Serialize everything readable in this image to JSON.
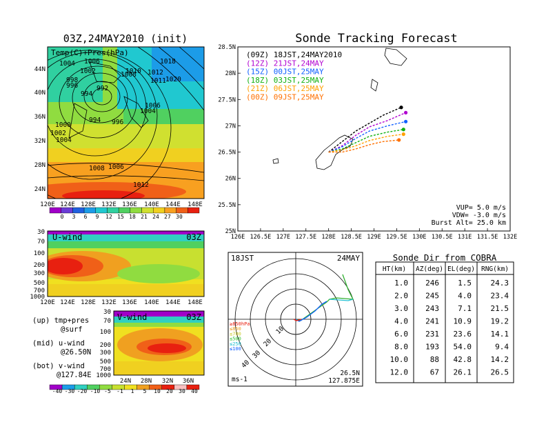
{
  "colors": {
    "temp_scale": [
      "#a000c8",
      "#6a3cd6",
      "#2060e0",
      "#1c9ce8",
      "#20c8d0",
      "#30d0a0",
      "#50d060",
      "#90dc40",
      "#d0e030",
      "#f0d020",
      "#f8a020",
      "#f06018",
      "#e82010"
    ],
    "uwind_scale": [
      "#a000c8",
      "#1c9ce8",
      "#30d0c0",
      "#50d060",
      "#90dc40",
      "#c8e030",
      "#f0e020",
      "#f0a020",
      "#f06018",
      "#e82010"
    ],
    "run_09z": "#000000",
    "run_12z": "#b000d0",
    "run_15z": "#1060ff",
    "run_18z": "#10b010",
    "run_21z": "#ffa000",
    "run_00z": "#ff7000"
  },
  "map_panel": {
    "title": "03Z,24MAY2010 (init)",
    "legend_label": "Temp(C)+Pres(hPa)",
    "lat_labels": [
      "44N",
      "40N",
      "36N",
      "32N",
      "28N",
      "24N"
    ],
    "lon_labels": [
      "120E",
      "124E",
      "128E",
      "132E",
      "136E",
      "140E",
      "144E",
      "148E"
    ],
    "colorbar_labels": [
      "0",
      "3",
      "6",
      "9",
      "12",
      "15",
      "18",
      "21",
      "24",
      "27",
      "30"
    ],
    "isobar_labels": [
      "1006",
      "1004",
      "1002",
      "998",
      "996",
      "994",
      "992",
      "1000",
      "1002",
      "1004",
      "994",
      "996",
      "1008",
      "1006",
      "1012",
      "1010",
      "1008",
      "1012",
      "1011",
      "1020",
      "1018",
      "1006",
      "1004"
    ]
  },
  "uwind_panel": {
    "title": "U-wind",
    "time": "03Z",
    "y_labels": [
      "30",
      "70",
      "100",
      "200",
      "300",
      "500",
      "700",
      "1000"
    ],
    "x_labels": [
      "120E",
      "124E",
      "128E",
      "132E",
      "136E",
      "140E",
      "144E",
      "148E"
    ]
  },
  "vwind_panel": {
    "title": "V-wind",
    "time": "03Z",
    "y_labels": [
      "30",
      "70",
      "100",
      "200",
      "300",
      "500",
      "700",
      "1000"
    ],
    "x_labels": [
      "24N",
      "28N",
      "32N",
      "36N"
    ],
    "colorbar_labels": [
      "-40",
      "-30",
      "-20",
      "-10",
      "-5",
      "-1",
      "1",
      "5",
      "10",
      "20",
      "30",
      "40"
    ]
  },
  "notes": {
    "line1": "(up) tmp+pres",
    "line2": "@surf",
    "line3": "(mid) u-wind",
    "line4": "@26.50N",
    "line5": "(bot) v-wind",
    "line6": "@127.84E"
  },
  "chart_data": {
    "type": "line",
    "title": "Sonde Tracking Forecast",
    "xlim": [
      126,
      132
    ],
    "ylim": [
      25,
      28.5
    ],
    "x_ticks": [
      "126E",
      "126.5E",
      "127E",
      "127.5E",
      "128E",
      "128.5E",
      "129E",
      "129.5E",
      "130E",
      "130.5E",
      "131E",
      "131.5E",
      "132E"
    ],
    "y_ticks": [
      "25N",
      "25.5N",
      "26N",
      "26.5N",
      "27N",
      "27.5N",
      "28N",
      "28.5N"
    ],
    "series": [
      {
        "name": "(09Z)  18JST,24MAY2010",
        "color_key": "run_09z",
        "lon": [
          128.0,
          128.3,
          128.6,
          128.9,
          129.2,
          129.6
        ],
        "lat": [
          26.5,
          26.7,
          26.9,
          27.05,
          27.2,
          27.35
        ]
      },
      {
        "name": "(12Z)  21JST,24MAY",
        "color_key": "run_12z",
        "lon": [
          128.0,
          128.3,
          128.6,
          128.9,
          129.3,
          129.7
        ],
        "lat": [
          26.5,
          26.62,
          26.82,
          26.98,
          27.1,
          27.25
        ]
      },
      {
        "name": "(15Z)  00JST,25MAY",
        "color_key": "run_15z",
        "lon": [
          128.0,
          128.3,
          128.6,
          128.9,
          129.3,
          129.7
        ],
        "lat": [
          26.5,
          26.6,
          26.76,
          26.9,
          27.0,
          27.08
        ]
      },
      {
        "name": "(18Z)  03JST,25MAY",
        "color_key": "run_18z",
        "lon": [
          128.0,
          128.3,
          128.6,
          128.9,
          129.3,
          129.65
        ],
        "lat": [
          26.5,
          26.56,
          26.68,
          26.8,
          26.88,
          26.93
        ]
      },
      {
        "name": "(21Z)  06JST,25MAY",
        "color_key": "run_21z",
        "lon": [
          128.0,
          128.3,
          128.6,
          128.9,
          129.3,
          129.65
        ],
        "lat": [
          26.5,
          26.54,
          26.62,
          26.72,
          26.8,
          26.84
        ]
      },
      {
        "name": "(00Z)  09JST,25MAY",
        "color_key": "run_00z",
        "lon": [
          128.0,
          128.3,
          128.6,
          128.9,
          129.2,
          129.55
        ],
        "lat": [
          26.5,
          26.5,
          26.56,
          26.64,
          26.7,
          26.73
        ]
      }
    ],
    "annotations": [
      "VUP= 5.0 m/s",
      "VDW= -3.0 m/s",
      "Burst Alt= 25.0 km"
    ]
  },
  "polar_panel": {
    "time_label": "18JST",
    "date_label": "24MAY",
    "unit": "ms-1",
    "lat": "26.5N",
    "lon": "127.875E",
    "ring_labels": [
      "10",
      "20",
      "30",
      "40"
    ],
    "pressure_legend": [
      "≥850hPa",
      "≤850",
      "≤700",
      "≤500",
      "≤250",
      "≤100"
    ],
    "pressure_colors": [
      "#e82010",
      "#f0a020",
      "#c8c820",
      "#30c030",
      "#20c0d0",
      "#1060ff"
    ]
  },
  "table": {
    "title": "Sonde Dir from COBRA",
    "headers": [
      "HT(km)",
      "AZ(deg)",
      "EL(deg)",
      "RNG(km)"
    ],
    "rows": [
      [
        "1.0",
        "246",
        "1.5",
        "24.3"
      ],
      [
        "2.0",
        "245",
        "4.0",
        "23.4"
      ],
      [
        "3.0",
        "243",
        "7.1",
        "21.5"
      ],
      [
        "4.0",
        "241",
        "10.9",
        "19.2"
      ],
      [
        "6.0",
        "231",
        "23.6",
        "14.1"
      ],
      [
        "8.0",
        "193",
        "54.0",
        "9.4"
      ],
      [
        "10.0",
        "88",
        "42.8",
        "14.2"
      ],
      [
        "12.0",
        "67",
        "26.1",
        "26.5"
      ]
    ]
  }
}
